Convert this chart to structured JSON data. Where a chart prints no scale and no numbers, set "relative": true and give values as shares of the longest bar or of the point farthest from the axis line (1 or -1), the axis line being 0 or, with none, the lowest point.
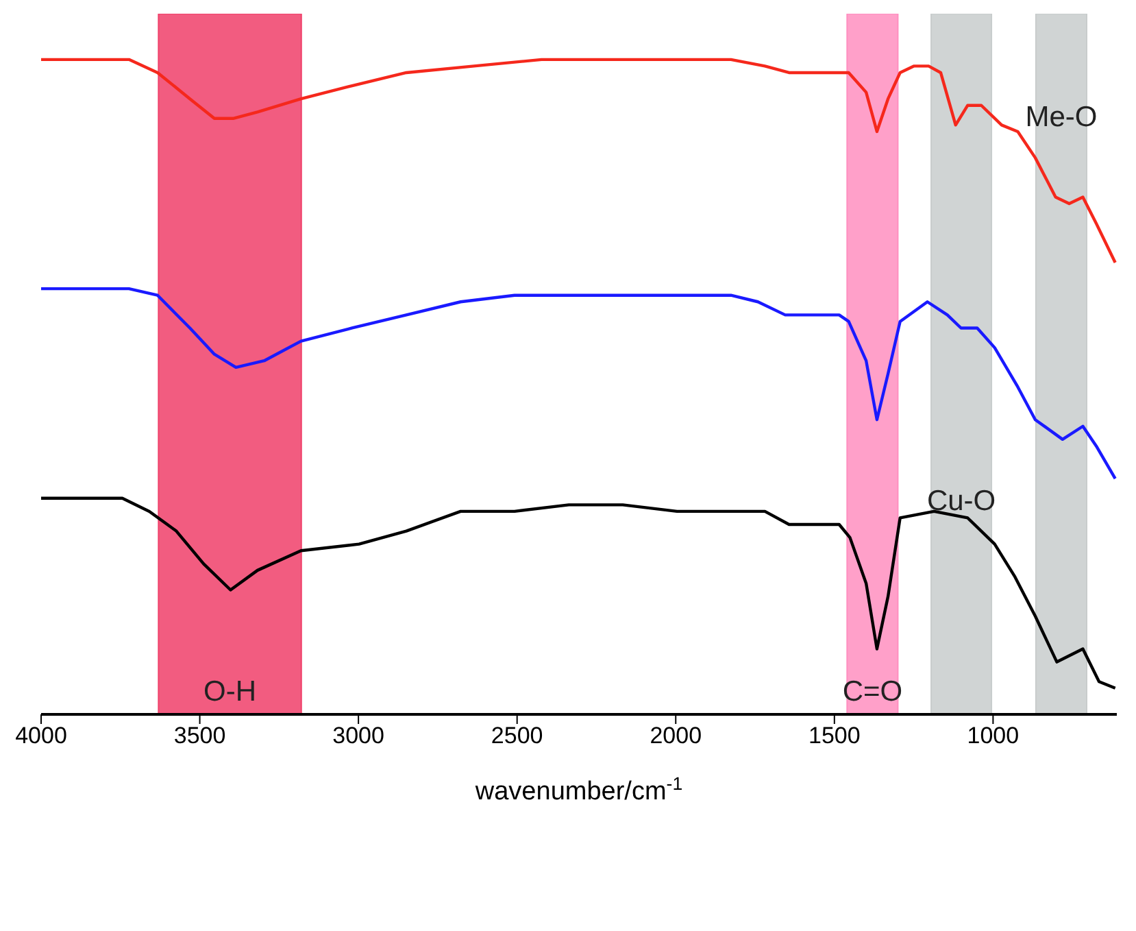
{
  "chart_data": {
    "type": "line",
    "relative": true,
    "xlabel": "wavenumber/cm$^{-1}$",
    "xlim": [
      4000,
      610
    ],
    "xticks": [
      4000,
      3500,
      3000,
      2500,
      2000,
      1500,
      1000
    ],
    "series": [
      {
        "color": "#f5281c",
        "x": [
          4000,
          3723,
          3633,
          3531,
          3454,
          3395,
          3318,
          3181,
          3020,
          2849,
          2636,
          2423,
          2295,
          2167,
          2039,
          1826,
          1719,
          1643,
          1485,
          1455,
          1400,
          1366,
          1331,
          1293,
          1250,
          1203,
          1165,
          1118,
          1080,
          1037,
          973,
          922,
          867,
          803,
          760,
          717,
          675,
          615
        ],
        "values": [
          1.0,
          1.0,
          0.98,
          0.94,
          0.91,
          0.91,
          0.92,
          0.94,
          0.96,
          0.98,
          0.99,
          1.0,
          1.0,
          1.0,
          1.0,
          1.0,
          0.99,
          0.98,
          0.98,
          0.98,
          0.95,
          0.89,
          0.94,
          0.98,
          0.99,
          0.99,
          0.98,
          0.9,
          0.93,
          0.93,
          0.9,
          0.89,
          0.85,
          0.79,
          0.78,
          0.79,
          0.75,
          0.69
        ]
      },
      {
        "color": "#1a1aff",
        "x": [
          4000,
          3723,
          3633,
          3531,
          3454,
          3386,
          3297,
          3181,
          3020,
          2849,
          2678,
          2508,
          2337,
          2167,
          1996,
          1826,
          1741,
          1655,
          1485,
          1455,
          1400,
          1366,
          1331,
          1293,
          1207,
          1144,
          1101,
          1050,
          995,
          922,
          867,
          781,
          717,
          675,
          615
        ],
        "values": [
          0.65,
          0.65,
          0.64,
          0.59,
          0.55,
          0.53,
          0.54,
          0.57,
          0.59,
          0.61,
          0.63,
          0.64,
          0.64,
          0.64,
          0.64,
          0.64,
          0.63,
          0.61,
          0.61,
          0.6,
          0.54,
          0.45,
          0.52,
          0.6,
          0.63,
          0.61,
          0.59,
          0.59,
          0.56,
          0.5,
          0.45,
          0.42,
          0.44,
          0.41,
          0.36
        ]
      },
      {
        "color": "#000000",
        "x": [
          4000,
          3744,
          3659,
          3574,
          3488,
          3403,
          3318,
          3181,
          2998,
          2849,
          2678,
          2508,
          2337,
          2167,
          1996,
          1826,
          1719,
          1643,
          1485,
          1451,
          1400,
          1366,
          1331,
          1293,
          1186,
          1080,
          995,
          931,
          867,
          799,
          717,
          666,
          615
        ],
        "values": [
          0.33,
          0.33,
          0.31,
          0.28,
          0.23,
          0.19,
          0.22,
          0.25,
          0.26,
          0.28,
          0.31,
          0.31,
          0.32,
          0.32,
          0.31,
          0.31,
          0.31,
          0.29,
          0.29,
          0.27,
          0.2,
          0.1,
          0.18,
          0.3,
          0.31,
          0.3,
          0.26,
          0.21,
          0.15,
          0.08,
          0.1,
          0.05,
          0.04
        ]
      }
    ],
    "bands": [
      {
        "axis": "x",
        "from": 3630,
        "to": 3180,
        "label": "O-H",
        "color": "#f0406a"
      },
      {
        "axis": "x",
        "from": 1460,
        "to": 1300,
        "label": "C=O",
        "color": "#ff8fc0"
      },
      {
        "axis": "x",
        "from": 1195,
        "to": 1005,
        "label": "Cu-O",
        "color": "#c8cccc"
      },
      {
        "axis": "x",
        "from": 865,
        "to": 705,
        "label": "Me-O",
        "color": "#c8cccc"
      }
    ]
  }
}
